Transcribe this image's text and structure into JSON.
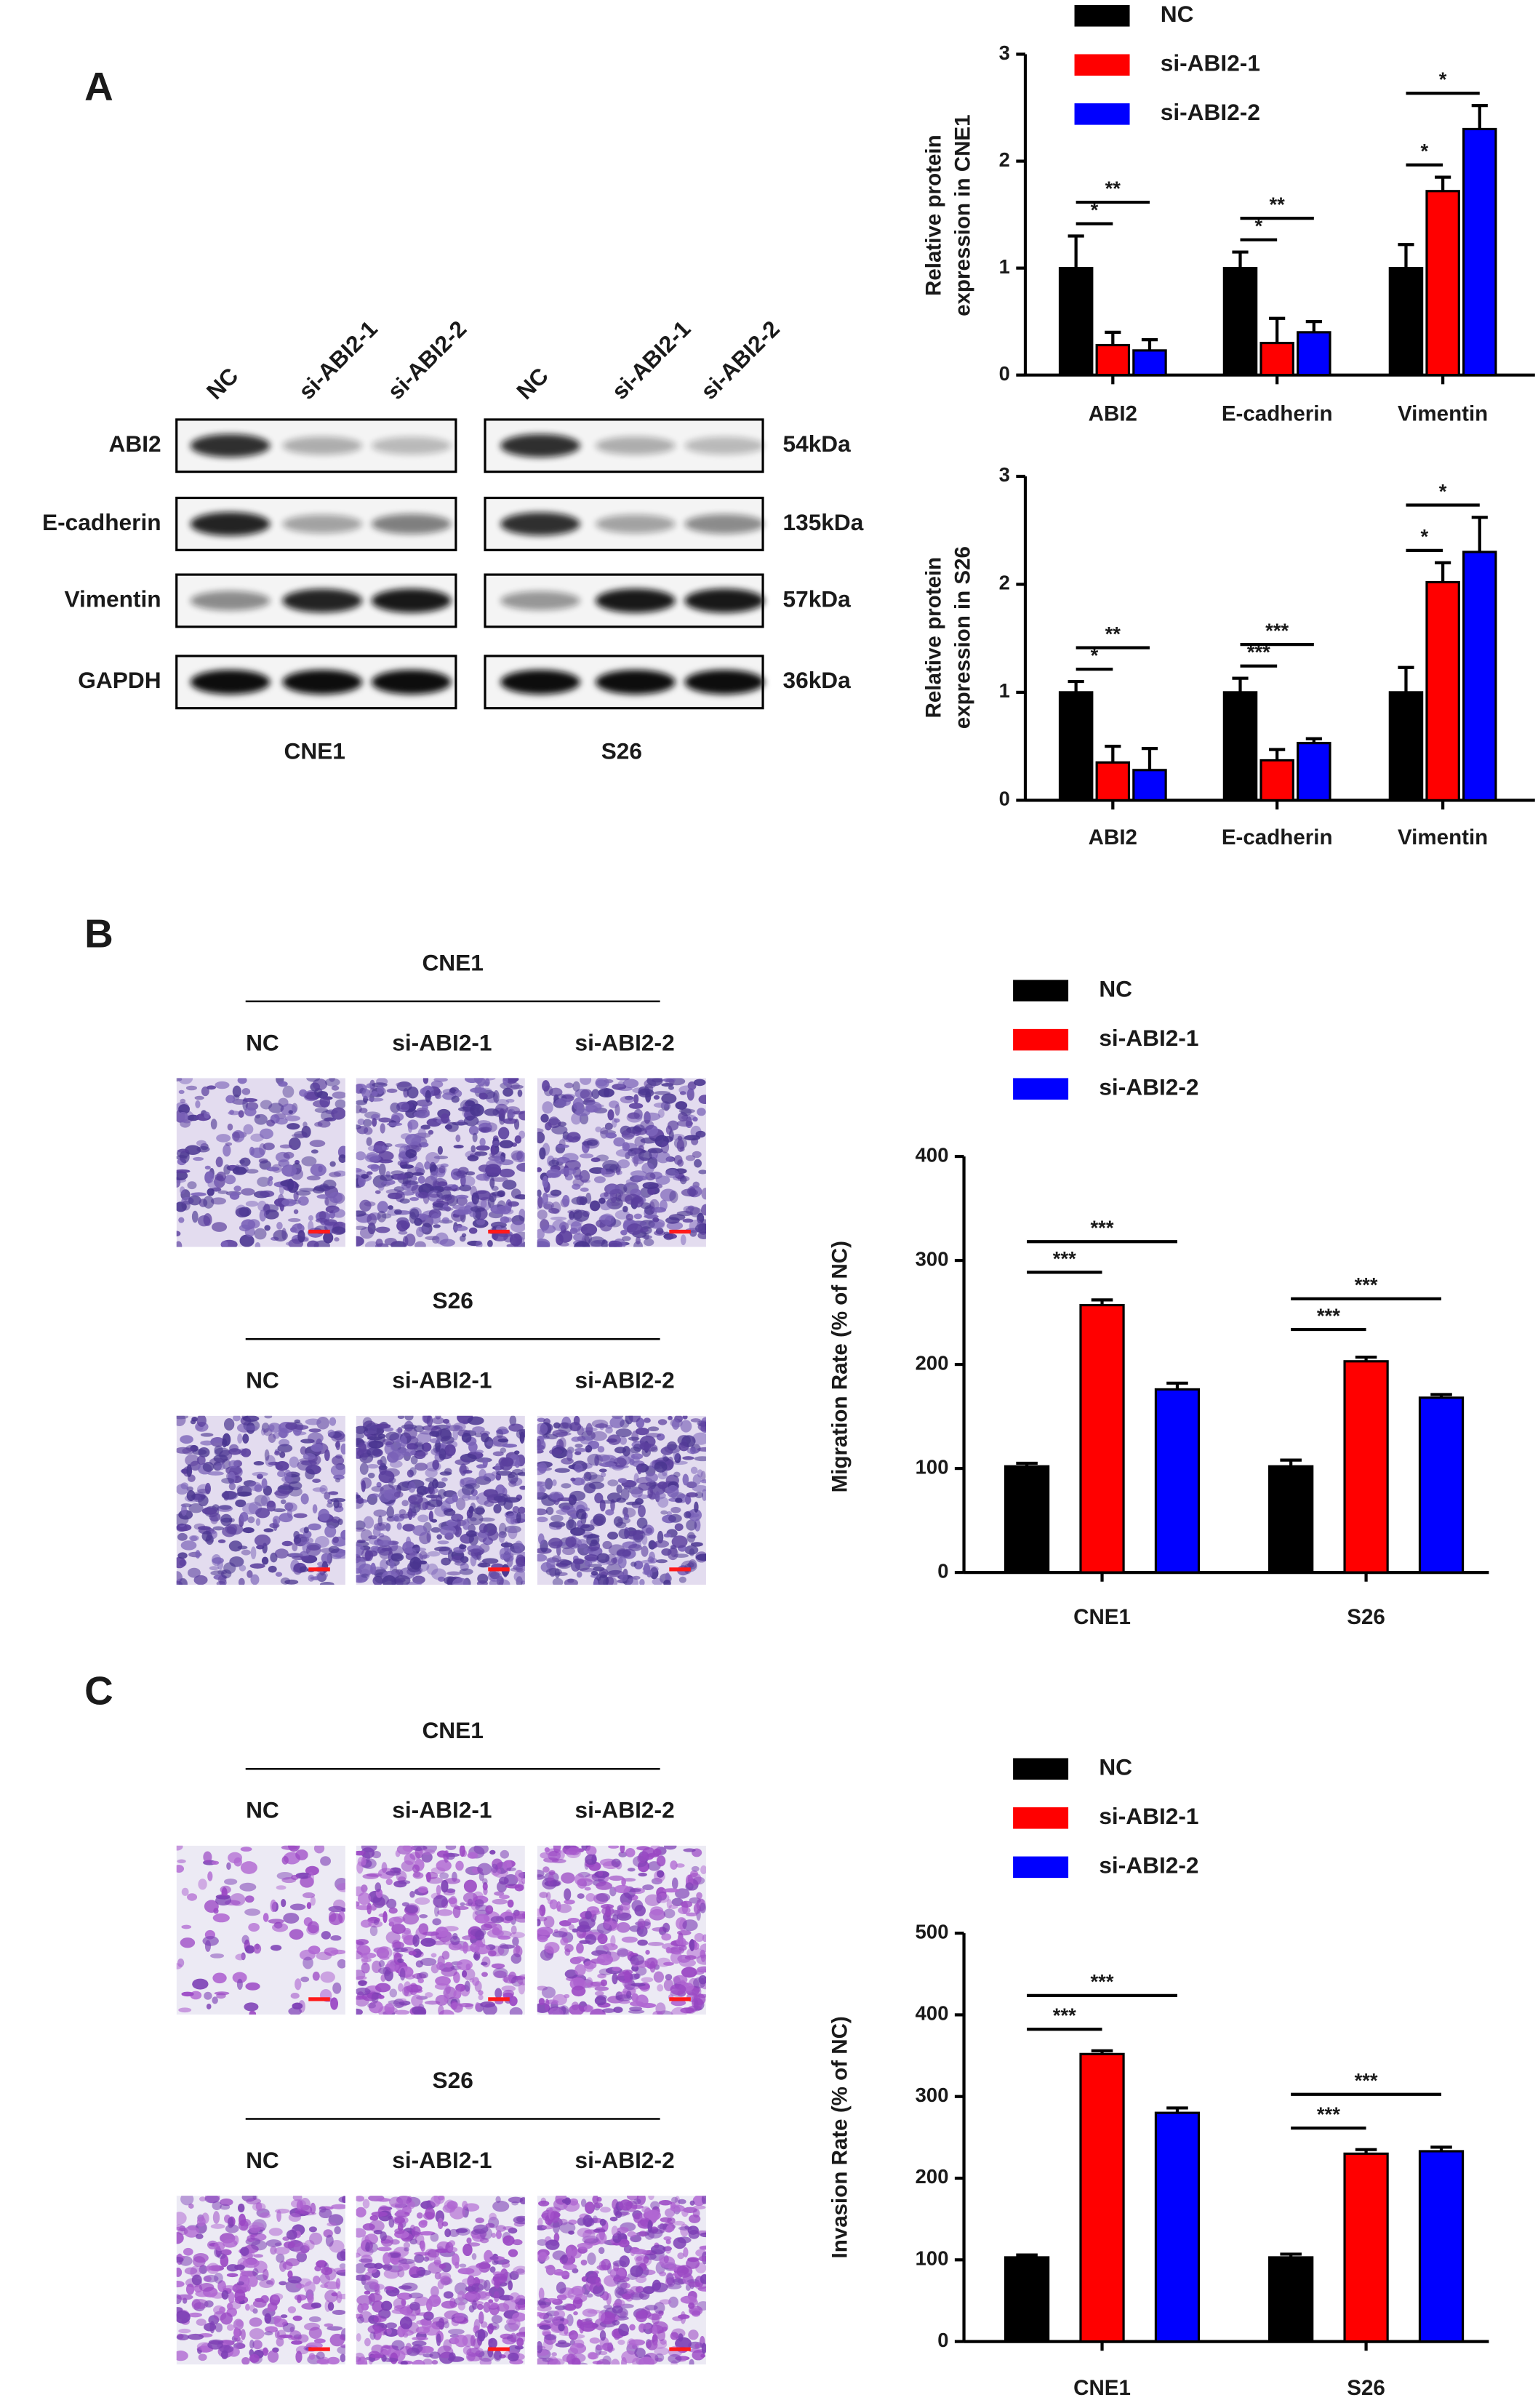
{
  "panels": [
    "A",
    "B",
    "C"
  ],
  "western_blot": {
    "lanes": [
      "NC",
      "si-ABI2-1",
      "si-ABI2-2"
    ],
    "cell_lines": [
      "CNE1",
      "S26"
    ],
    "proteins": [
      {
        "name": "ABI2",
        "size": "54kDa"
      },
      {
        "name": "E-cadherin",
        "size": "135kDa"
      },
      {
        "name": "Vimentin",
        "size": "57kDa"
      },
      {
        "name": "GAPDH",
        "size": "36kDa"
      }
    ]
  },
  "micrographs": {
    "B": [
      {
        "cell_line": "CNE1",
        "lanes": [
          "NC",
          "si-ABI2-1",
          "si-ABI2-2"
        ]
      },
      {
        "cell_line": "S26",
        "lanes": [
          "NC",
          "si-ABI2-1",
          "si-ABI2-2"
        ]
      }
    ],
    "C": [
      {
        "cell_line": "CNE1",
        "lanes": [
          "NC",
          "si-ABI2-1",
          "si-ABI2-2"
        ]
      },
      {
        "cell_line": "S26",
        "lanes": [
          "NC",
          "si-ABI2-1",
          "si-ABI2-2"
        ]
      }
    ]
  },
  "chart_data": [
    {
      "type": "bar",
      "ylabel": [
        "Relative protein",
        "expression in CNE1"
      ],
      "categories": [
        "ABI2",
        "E-cadherin",
        "Vimentin"
      ],
      "series": [
        {
          "name": "NC",
          "color": "#000000",
          "values": [
            1,
            1,
            1
          ],
          "errors": [
            0.3,
            0.15,
            0.22
          ]
        },
        {
          "name": "si-ABI2-1",
          "color": "#ff0000",
          "values": [
            0.28,
            0.3,
            1.72
          ],
          "errors": [
            0.12,
            0.23,
            0.13
          ]
        },
        {
          "name": "si-ABI2-2",
          "color": "#0000ff",
          "values": [
            0.23,
            0.4,
            2.3
          ],
          "errors": [
            0.1,
            0.1,
            0.22
          ]
        }
      ],
      "ylim": [
        0,
        3
      ],
      "yticks": [
        0,
        1,
        2,
        3
      ],
      "significance": [
        [
          "*",
          "**"
        ],
        [
          "*",
          "**"
        ],
        [
          "*",
          "*"
        ]
      ],
      "legend": "top"
    },
    {
      "type": "bar",
      "ylabel": [
        "Relative protein",
        "expression in S26"
      ],
      "categories": [
        "ABI2",
        "E-cadherin",
        "Vimentin"
      ],
      "series": [
        {
          "color": "#000000",
          "values": [
            1,
            1,
            1
          ],
          "errors": [
            0.1,
            0.13,
            0.23
          ]
        },
        {
          "color": "#ff0000",
          "values": [
            0.35,
            0.37,
            2.02
          ],
          "errors": [
            0.15,
            0.1,
            0.18
          ]
        },
        {
          "color": "#0000ff",
          "values": [
            0.28,
            0.53,
            2.3
          ],
          "errors": [
            0.2,
            0.04,
            0.32
          ]
        }
      ],
      "ylim": [
        0,
        3
      ],
      "yticks": [
        0,
        1,
        2,
        3
      ],
      "significance": [
        [
          "*",
          "**"
        ],
        [
          "***",
          "***"
        ],
        [
          "*",
          "*"
        ]
      ]
    },
    {
      "type": "bar",
      "ylabel": [
        "Migration Rate (% of NC)"
      ],
      "categories": [
        "CNE1",
        "S26"
      ],
      "series": [
        {
          "name": "NC",
          "color": "#000000",
          "values": [
            102,
            102
          ],
          "errors": [
            3,
            6
          ]
        },
        {
          "name": "si-ABI2-1",
          "color": "#ff0000",
          "values": [
            257,
            203
          ],
          "errors": [
            5,
            4
          ]
        },
        {
          "name": "si-ABI2-2",
          "color": "#0000ff",
          "values": [
            176,
            168
          ],
          "errors": [
            6,
            3
          ]
        }
      ],
      "ylim": [
        0,
        400
      ],
      "yticks": [
        0,
        100,
        200,
        300,
        400
      ],
      "significance": [
        [
          "***",
          "***"
        ],
        [
          "***",
          "***"
        ]
      ],
      "legend": "top"
    },
    {
      "type": "bar",
      "ylabel": [
        "Invasion Rate (% of NC)"
      ],
      "categories": [
        "CNE1",
        "S26"
      ],
      "series": [
        {
          "name": "NC",
          "color": "#000000",
          "values": [
            103,
            103
          ],
          "errors": [
            3,
            4
          ]
        },
        {
          "name": "si-ABI2-1",
          "color": "#ff0000",
          "values": [
            352,
            230
          ],
          "errors": [
            4,
            5
          ]
        },
        {
          "name": "si-ABI2-2",
          "color": "#0000ff",
          "values": [
            280,
            233
          ],
          "errors": [
            6,
            5
          ]
        }
      ],
      "ylim": [
        0,
        500
      ],
      "yticks": [
        0,
        100,
        200,
        300,
        400,
        500
      ],
      "significance": [
        [
          "***",
          "***"
        ],
        [
          "***",
          "***"
        ]
      ],
      "legend": "top"
    }
  ]
}
